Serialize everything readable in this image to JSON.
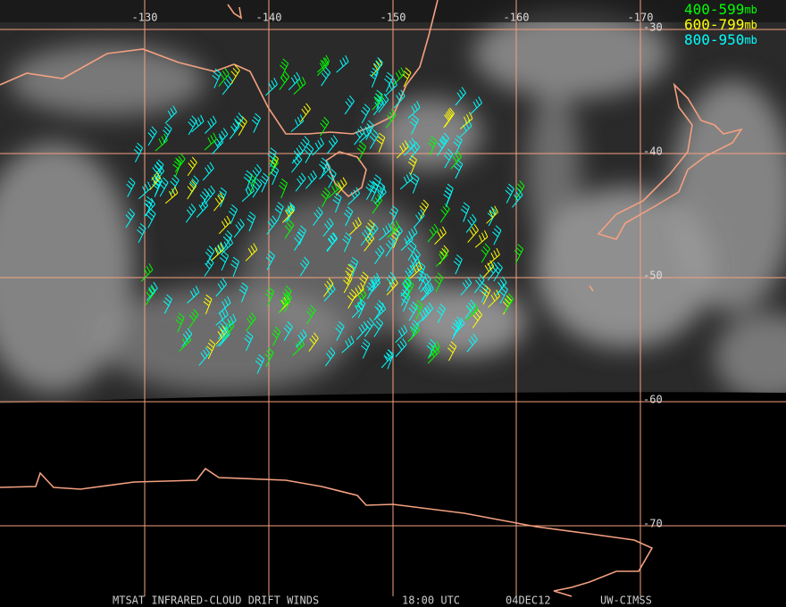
{
  "map": {
    "lon_labels": [
      -130,
      -140,
      -150,
      -160,
      -170
    ],
    "lat_labels": [
      -30,
      -40,
      -50,
      -60,
      -70
    ],
    "legend": [
      {
        "range": "400-599",
        "unit": "mb",
        "color": "#00ff00"
      },
      {
        "range": "600-799",
        "unit": "mb",
        "color": "#ffff00"
      },
      {
        "range": "800-950",
        "unit": "mb",
        "color": "#00ffff"
      }
    ],
    "footer": {
      "product": "MTSAT INFRARED-CLOUD DRIFT WINDS",
      "time": "18:00 UTC",
      "date": "04DEC12",
      "source": "UW-CIMSS"
    }
  }
}
